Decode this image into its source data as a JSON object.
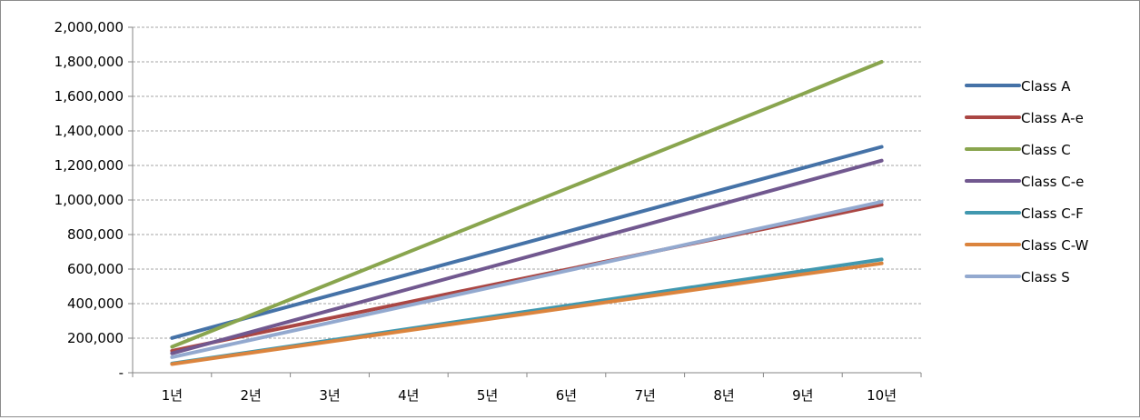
{
  "chart_data": {
    "type": "line",
    "categories": [
      "1년",
      "2년",
      "3년",
      "4년",
      "5년",
      "6년",
      "7년",
      "8년",
      "9년",
      "10년"
    ],
    "ylim": [
      0,
      2000000
    ],
    "yticks": [
      0,
      200000,
      400000,
      600000,
      800000,
      1000000,
      1200000,
      1400000,
      1600000,
      1800000,
      2000000
    ],
    "ytick_labels": [
      "-",
      "200,000",
      "400,000",
      "600,000",
      "800,000",
      "1,000,000",
      "1,200,000",
      "1,400,000",
      "1,600,000",
      "1,800,000",
      "2,000,000"
    ],
    "grid": "horizontal dashed",
    "legend_position": "right",
    "series": [
      {
        "name": "Class A",
        "color": "#4572a7",
        "values": [
          201000,
          324000,
          447000,
          570000,
          693000,
          816000,
          939000,
          1062000,
          1185000,
          1308000
        ]
      },
      {
        "name": "Class A-e",
        "color": "#aa4643",
        "values": [
          127000,
          221000,
          315000,
          409000,
          503000,
          597000,
          691000,
          785000,
          879000,
          973000
        ]
      },
      {
        "name": "Class C",
        "color": "#89a54e",
        "values": [
          150000,
          333000,
          516000,
          699000,
          882000,
          1065000,
          1248000,
          1431000,
          1614000,
          1800000
        ]
      },
      {
        "name": "Class C-e",
        "color": "#71588f",
        "values": [
          112000,
          236000,
          360000,
          484000,
          608000,
          732000,
          856000,
          980000,
          1104000,
          1228000
        ]
      },
      {
        "name": "Class C-F",
        "color": "#4198af",
        "values": [
          53000,
          120000,
          187000,
          254000,
          321000,
          388000,
          455000,
          522000,
          589000,
          656000
        ]
      },
      {
        "name": "Class C-W",
        "color": "#db843d",
        "values": [
          50000,
          115000,
          180000,
          245000,
          310000,
          375000,
          440000,
          505000,
          570000,
          633000
        ]
      },
      {
        "name": "Class S",
        "color": "#93a9cf",
        "values": [
          90000,
          190000,
          290000,
          390000,
          490000,
          590000,
          690000,
          790000,
          890000,
          990000
        ]
      }
    ]
  }
}
